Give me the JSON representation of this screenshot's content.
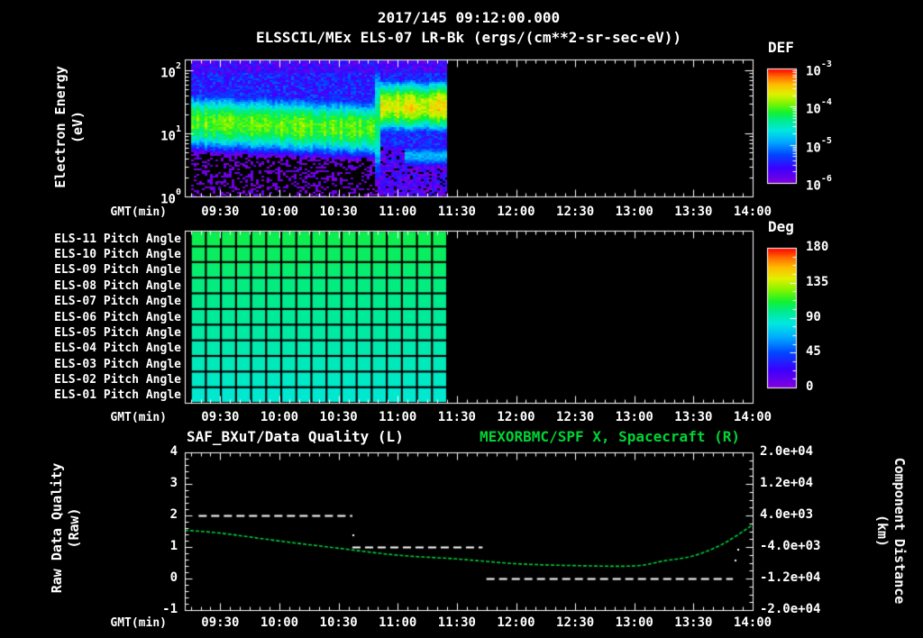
{
  "header": {
    "datetime": "2017/145 09:12:00.000",
    "instrument_title": "ELSSCIL/MEx ELS-07 LR-Bk  (ergs/(cm**2-sr-sec-eV))"
  },
  "time_axis": {
    "start": "09:12",
    "end": "14:00",
    "major_ticks": [
      "09:30",
      "10:00",
      "10:30",
      "11:00",
      "11:30",
      "12:00",
      "12:30",
      "13:00",
      "13:30",
      "14:00"
    ],
    "minor_step_min": 5,
    "xlabel": "GMT(min)"
  },
  "panel1": {
    "ylabel_line1": "Electron Energy",
    "ylabel_line2": "(eV)",
    "yticks": [
      "10^2",
      "10^1",
      "10^0"
    ],
    "ytick_decades": [
      2,
      1,
      0
    ],
    "colorbar": {
      "title": "DEF",
      "ticks": [
        "10^-3",
        "10^-4",
        "10^-5",
        "10^-6"
      ]
    }
  },
  "panel2": {
    "row_labels": [
      "ELS-11 Pitch Angle",
      "ELS-10 Pitch Angle",
      "ELS-09 Pitch Angle",
      "ELS-08 Pitch Angle",
      "ELS-07 Pitch Angle",
      "ELS-06 Pitch Angle",
      "ELS-05 Pitch Angle",
      "ELS-04 Pitch Angle",
      "ELS-03 Pitch Angle",
      "ELS-02 Pitch Angle",
      "ELS-01 Pitch Angle"
    ],
    "colorbar": {
      "title": "Deg",
      "ticks": [
        "180",
        "135",
        "90",
        "45",
        "0"
      ]
    }
  },
  "panel3": {
    "title_left": "SAF_BXuT/Data Quality (L)",
    "title_right": "MEXORBMC/SPF X, Spacecraft (R)",
    "ylabel_left_line1": "Raw Data Quality",
    "ylabel_left_line2": "(Raw)",
    "ylabel_right_line1": "Component Distance",
    "ylabel_right_line2": "(km)",
    "yticks_left": [
      "4",
      "3",
      "2",
      "1",
      "0",
      "-1"
    ],
    "yticks_right": [
      "2.0e+04",
      "1.2e+04",
      "4.0e+03",
      "-4.0e+03",
      "-1.2e+04",
      "-2.0e+04"
    ]
  },
  "colors": {
    "background": "#000000",
    "text": "#ffffff",
    "title_green": "#00d435",
    "curve_green": "#00cc3a",
    "quality_white": "#ffffff"
  },
  "chart_data": [
    {
      "id": "electron-energy-spectrogram",
      "type": "heatmap",
      "title": "ELSSCIL/MEx ELS-07 LR-Bk (ergs/(cm**2-sr-sec-eV))",
      "xlabel": "GMT(min)",
      "ylabel": "Electron Energy (eV)",
      "x_range": [
        "09:12",
        "14:00"
      ],
      "data_range": [
        "09:15",
        "11:25"
      ],
      "y_scale": "log",
      "ylim_ev": [
        1,
        150
      ],
      "color_scale": {
        "quantity": "DEF",
        "units": "ergs/(cm**2-sr-sec-eV)",
        "range_log10": [
          -6,
          -3
        ],
        "map": "rainbow"
      },
      "features": [
        {
          "label": "background-noise",
          "time": [
            "09:15",
            "11:25"
          ],
          "log10_def": -5.45,
          "noise": 0.3
        },
        {
          "label": "suprathermal-band-pre-transition",
          "time": [
            "09:15",
            "10:48"
          ],
          "center_ev": 13,
          "sigma_decades": 0.25,
          "peak_log10_def": -4.0
        },
        {
          "label": "suprathermal-band-post-transition",
          "time": [
            "10:51",
            "11:25"
          ],
          "center_ev": 27,
          "sigma_decades": 0.22,
          "peak_log10_def": -3.65
        },
        {
          "label": "transition-streak",
          "time": [
            "10:48",
            "10:51"
          ],
          "center_ev": 16,
          "sigma_decades": 0.55,
          "peak_log10_def": -4.3
        },
        {
          "label": "low-energy-patch",
          "time": [
            "11:03",
            "11:25"
          ],
          "center_ev": 4.4,
          "sigma_decades": 0.09,
          "peak_log10_def": -4.85
        },
        {
          "label": "low-energy-dropout",
          "time": [
            "09:15",
            "10:50"
          ],
          "below_ev": 6,
          "log10_def": -6.15,
          "noise": 0.35
        }
      ]
    },
    {
      "id": "pitch-angle-panel",
      "type": "heatmap",
      "xlabel": "GMT(min)",
      "rows": [
        "ELS-11",
        "ELS-10",
        "ELS-09",
        "ELS-08",
        "ELS-07",
        "ELS-06",
        "ELS-05",
        "ELS-04",
        "ELS-03",
        "ELS-02",
        "ELS-01"
      ],
      "row_pitch_deg": [
        107,
        104.9,
        102.8,
        100.7,
        98.6,
        96.5,
        94.4,
        92.3,
        90.2,
        88.1,
        86
      ],
      "data_range": [
        "09:15",
        "11:25"
      ],
      "n_time_cells": 17,
      "color_scale": {
        "quantity": "pitch angle",
        "units": "Deg",
        "range": [
          0,
          180
        ],
        "map": "rainbow"
      }
    },
    {
      "id": "quality-and-spacecraft-x",
      "type": "line",
      "x_range": [
        "09:12",
        "14:00"
      ],
      "left_axis": {
        "label": "Raw Data Quality (Raw)",
        "range": [
          -1,
          4
        ]
      },
      "right_axis": {
        "label": "Component Distance (km)",
        "range": [
          -20000,
          20000
        ]
      },
      "series": [
        {
          "name": "SAF_BXuT/Data Quality (L)",
          "axis": "left",
          "style": "dashed-white",
          "segments": [
            {
              "start": "09:19",
              "end": "10:37",
              "value": 2
            },
            {
              "start": "10:37",
              "end": "11:43",
              "value": 1
            },
            {
              "start": "11:45",
              "end": "13:50",
              "value": 0
            }
          ],
          "points": [
            {
              "t": "10:37",
              "value": 1.4
            },
            {
              "t": "13:51",
              "value": 0.6
            },
            {
              "t": "13:52",
              "value": 0.95
            }
          ]
        },
        {
          "name": "MEXORBMC/SPF X, Spacecraft (R)",
          "axis": "right",
          "style": "dashed-green",
          "x": [
            "09:12",
            "09:30",
            "10:00",
            "10:30",
            "11:00",
            "11:30",
            "12:00",
            "12:30",
            "13:00",
            "13:15",
            "13:30",
            "13:45",
            "14:00"
          ],
          "values_km": [
            240,
            -480,
            -2480,
            -4320,
            -6080,
            -7040,
            -8240,
            -8720,
            -8800,
            -7520,
            -6240,
            -3200,
            1600
          ]
        }
      ]
    }
  ]
}
